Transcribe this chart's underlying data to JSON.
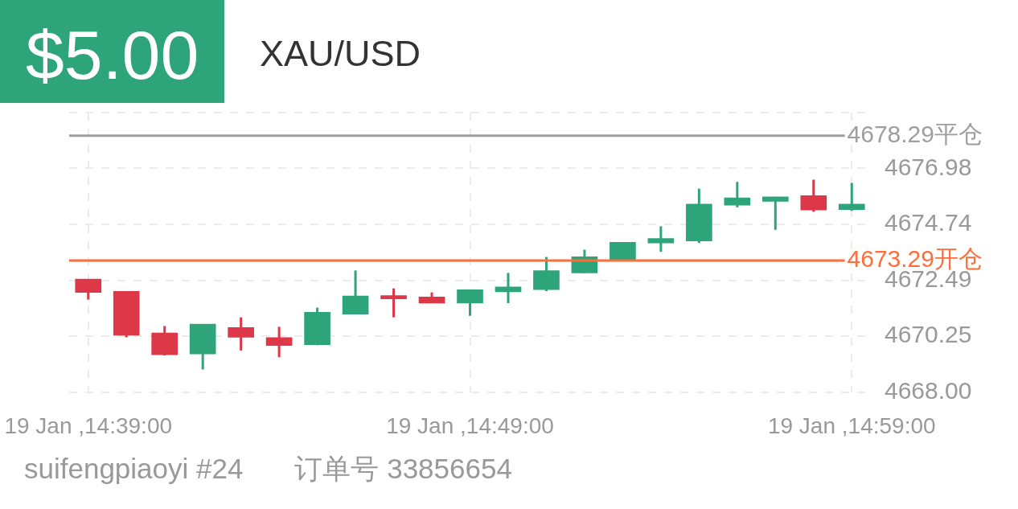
{
  "chart_data": {
    "type": "candlestick",
    "title": "XAU/USD",
    "subtitle": "$5.00",
    "annotations": [
      "suifengpiaoyi #24",
      "订单号 33856654"
    ],
    "categories": [
      "19 Jan ,14:39:00",
      null,
      null,
      null,
      null,
      null,
      null,
      null,
      null,
      null,
      "19 Jan ,14:49:00",
      null,
      null,
      null,
      null,
      null,
      null,
      null,
      null,
      null,
      "19 Jan ,14:59:00"
    ],
    "ohlc": [
      [
        4672.54,
        4672.54,
        4671.72,
        4672.01
      ],
      [
        4672.05,
        4672.05,
        4670.21,
        4670.29
      ],
      [
        4670.38,
        4670.66,
        4669.48,
        4669.51
      ],
      [
        4669.54,
        4670.74,
        4668.92,
        4670.74
      ],
      [
        4670.6,
        4671.01,
        4669.68,
        4670.21
      ],
      [
        4670.2,
        4670.63,
        4669.41,
        4669.88
      ],
      [
        4669.91,
        4671.4,
        4669.89,
        4671.21
      ],
      [
        4671.14,
        4672.89,
        4671.14,
        4671.87
      ],
      [
        4671.88,
        4672.17,
        4671.01,
        4671.75
      ],
      [
        4671.83,
        4672.01,
        4671.58,
        4671.58
      ],
      [
        4671.58,
        4672.12,
        4671.07,
        4672.12
      ],
      [
        4672.03,
        4672.79,
        4671.58,
        4672.23
      ],
      [
        4672.12,
        4673.43,
        4672.06,
        4672.88
      ],
      [
        4672.79,
        4673.72,
        4672.79,
        4673.44
      ],
      [
        4673.33,
        4674.02,
        4673.33,
        4674.02
      ],
      [
        4673.99,
        4674.66,
        4673.64,
        4674.17
      ],
      [
        4674.07,
        4676.17,
        4673.99,
        4675.55
      ],
      [
        4675.51,
        4676.44,
        4675.42,
        4675.8
      ],
      [
        4675.66,
        4675.84,
        4674.52,
        4675.84
      ],
      [
        4675.89,
        4676.53,
        4675.24,
        4675.31
      ],
      [
        4675.33,
        4676.4,
        4675.28,
        4675.55
      ]
    ],
    "colors": [
      "#dc3848",
      "#dc3848",
      "#dc3848",
      "#2ea47a",
      "#dc3848",
      "#dc3848",
      "#2ea47a",
      "#2ea47a",
      "#dc3848",
      "#dc3848",
      "#2ea47a",
      "#2ea47a",
      "#2ea47a",
      "#2ea47a",
      "#2ea47a",
      "#2ea47a",
      "#2ea47a",
      "#2ea47a",
      "#2ea47a",
      "#dc3848",
      "#2ea47a"
    ],
    "ylim": [
      4668,
      4679.22
    ],
    "yticks": [
      {
        "value": 4668,
        "label": "4668.00"
      },
      4670.25,
      4672.49,
      4674.74,
      4676.98,
      {
        "value": 4679.22,
        "label": null
      }
    ],
    "ref_lines": [
      {
        "axis": "y",
        "value": 4678.29,
        "label": "4678.29平仓",
        "color": "#9e9e9e"
      },
      {
        "axis": "y",
        "value": 4673.29,
        "label": "4673.29开仓",
        "color": "#ff6d3a"
      }
    ],
    "grid": true
  }
}
